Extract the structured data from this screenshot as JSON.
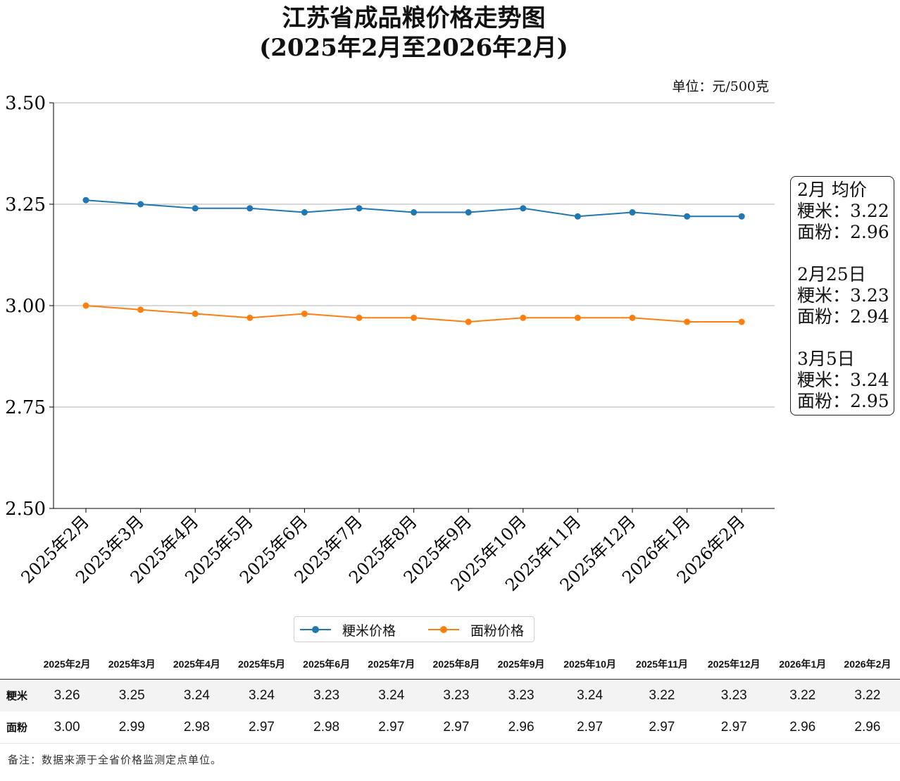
{
  "title_line1": "江苏省成品粮价格走势图",
  "title_line2": "(2025年2月至2026年2月)",
  "unit": "单位：元/500克",
  "colors": {
    "rice": "#1f77b4",
    "flour": "#ff7f0e"
  },
  "chart_data": {
    "type": "line",
    "categories": [
      "2025年2月",
      "2025年3月",
      "2025年4月",
      "2025年5月",
      "2025年6月",
      "2025年7月",
      "2025年8月",
      "2025年9月",
      "2025年10月",
      "2025年11月",
      "2025年12月",
      "2026年1月",
      "2026年2月"
    ],
    "series": [
      {
        "name": "粳米价格",
        "values": [
          3.26,
          3.25,
          3.24,
          3.24,
          3.23,
          3.24,
          3.23,
          3.23,
          3.24,
          3.22,
          3.23,
          3.22,
          3.22
        ]
      },
      {
        "name": "面粉价格",
        "values": [
          3.0,
          2.99,
          2.98,
          2.97,
          2.98,
          2.97,
          2.97,
          2.96,
          2.97,
          2.97,
          2.97,
          2.96,
          2.96
        ]
      }
    ],
    "ylim": [
      2.5,
      3.5
    ],
    "yticks": [
      "2.50",
      "2.75",
      "3.00",
      "3.25",
      "3.50"
    ],
    "grid": "horizontal",
    "legend": "bottom-center"
  },
  "infobox": [
    {
      "title": "2月 均价",
      "rice": "粳米：3.22",
      "flour": "面粉：2.96"
    },
    {
      "title": "2月25日",
      "rice": "粳米：3.23",
      "flour": "面粉：2.94"
    },
    {
      "title": "3月5日",
      "rice": "粳米：3.24",
      "flour": "面粉：2.95"
    }
  ],
  "legend": {
    "rice": "粳米价格",
    "flour": "面粉价格"
  },
  "table": {
    "headers": [
      "2025年2月",
      "2025年3月",
      "2025年4月",
      "2025年5月",
      "2025年6月",
      "2025年7月",
      "2025年8月",
      "2025年9月",
      "2025年10月",
      "2025年11月",
      "2025年12月",
      "2026年1月",
      "2026年2月"
    ],
    "rows": [
      {
        "label": "粳米",
        "values": [
          "3.26",
          "3.25",
          "3.24",
          "3.24",
          "3.23",
          "3.24",
          "3.23",
          "3.23",
          "3.24",
          "3.22",
          "3.23",
          "3.22",
          "3.22"
        ]
      },
      {
        "label": "面粉",
        "values": [
          "3.00",
          "2.99",
          "2.98",
          "2.97",
          "2.98",
          "2.97",
          "2.97",
          "2.96",
          "2.97",
          "2.97",
          "2.97",
          "2.96",
          "2.96"
        ]
      }
    ]
  },
  "note": "备注：数据来源于全省价格监测定点单位。"
}
